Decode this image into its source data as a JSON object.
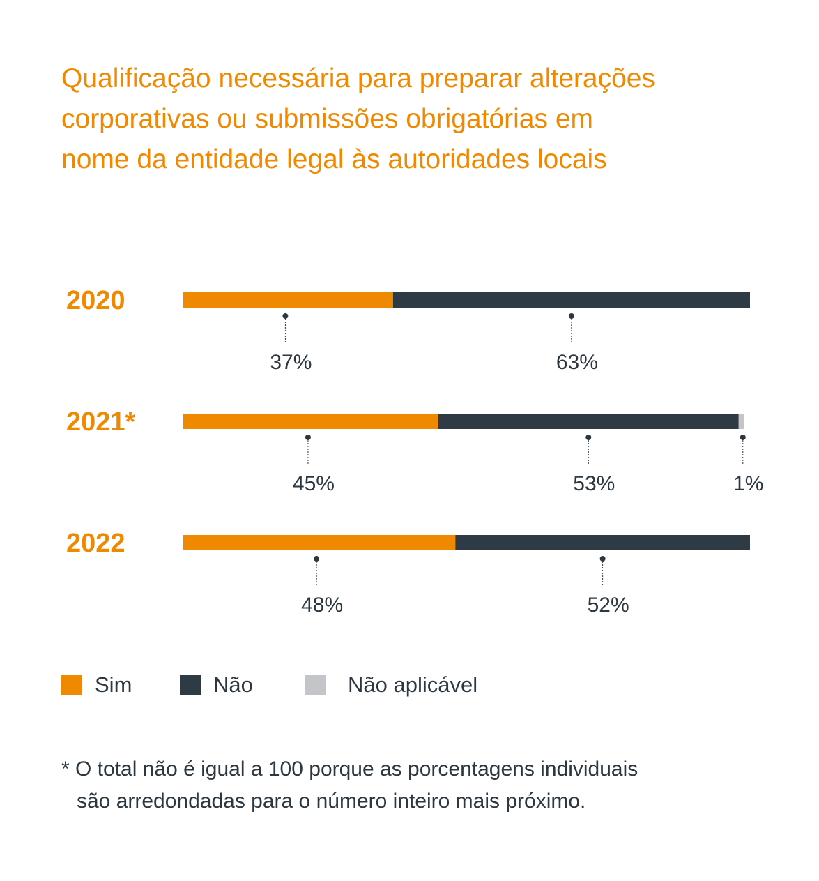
{
  "colors": {
    "sim": "#ef8a00",
    "nao": "#2e3b45",
    "na": "#c3c5c8",
    "accent": "#ef8a00",
    "text": "#2d3740"
  },
  "chart_data": {
    "type": "bar",
    "orientation": "horizontal-stacked",
    "title": "Qualificação necessária para preparar alterações corporativas ou submissões obrigatórias em nome da entidade legal às autoridades locais",
    "title_lines": [
      "Qualificação necessária para preparar alterações",
      "corporativas ou submissões obrigatórias em",
      "nome da entidade legal às autoridades locais"
    ],
    "categories": [
      "2020",
      "2021*",
      "2022"
    ],
    "series": [
      {
        "name": "Sim",
        "color": "#ef8a00",
        "values": [
          37,
          45,
          48
        ]
      },
      {
        "name": "Não",
        "color": "#2e3b45",
        "values": [
          63,
          53,
          52
        ]
      },
      {
        "name": "Não aplicável",
        "color": "#c3c5c8",
        "values": [
          0,
          1,
          0
        ]
      }
    ],
    "value_labels": [
      [
        "37%",
        "63%"
      ],
      [
        "45%",
        "53%",
        "1%"
      ],
      [
        "48%",
        "52%"
      ]
    ],
    "xlim": [
      0,
      100
    ],
    "grid": false,
    "legend_position": "bottom-left"
  },
  "legend": {
    "items": [
      {
        "label": "Sim",
        "color": "#ef8a00"
      },
      {
        "label": "Não",
        "color": "#2e3b45"
      },
      {
        "label": "Não aplicável",
        "color": "#c3c5c8"
      }
    ]
  },
  "footnote": {
    "line1": "* O total não é igual a 100 porque as porcentagens individuais",
    "line2": "são arredondadas para o número inteiro mais próximo."
  }
}
